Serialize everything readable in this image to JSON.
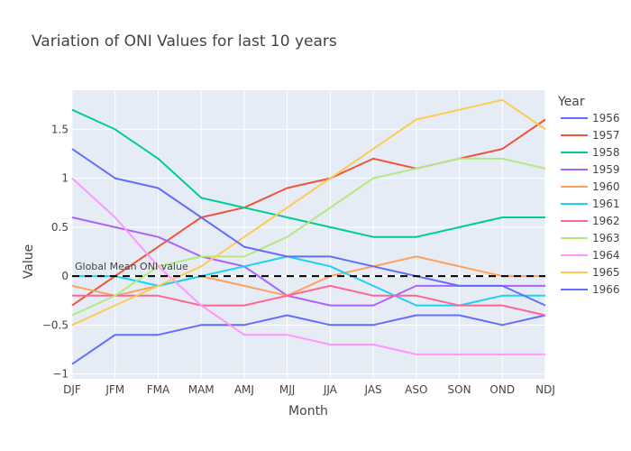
{
  "chart_data": {
    "type": "line",
    "title": "Variation of ONI Values for last 10 years",
    "xlabel": "Month",
    "ylabel": "Value",
    "categories": [
      "DJF",
      "JFM",
      "FMA",
      "MAM",
      "AMJ",
      "MJJ",
      "JJA",
      "JAS",
      "ASO",
      "SON",
      "OND",
      "NDJ"
    ],
    "yticks": [
      "−1",
      "−0.5",
      "0",
      "0.5",
      "1",
      "1.5"
    ],
    "ytick_values": [
      -1,
      -0.5,
      0,
      0.5,
      1,
      1.5
    ],
    "ylim": [
      -1.05,
      1.9
    ],
    "legend_title": "Year",
    "legend_position": "right",
    "grid": true,
    "series": [
      {
        "name": "1956",
        "color": "#636efa",
        "values": [
          -0.9,
          -0.6,
          -0.6,
          -0.5,
          -0.5,
          -0.4,
          -0.5,
          -0.5,
          -0.4,
          -0.4,
          -0.5,
          -0.4
        ]
      },
      {
        "name": "1957",
        "color": "#ef553b",
        "values": [
          -0.3,
          0.0,
          0.3,
          0.6,
          0.7,
          0.9,
          1.0,
          1.2,
          1.1,
          1.2,
          1.3,
          1.6
        ]
      },
      {
        "name": "1958",
        "color": "#00cc96",
        "values": [
          1.7,
          1.5,
          1.2,
          0.8,
          0.7,
          0.6,
          0.5,
          0.4,
          0.4,
          0.5,
          0.6,
          0.6
        ]
      },
      {
        "name": "1959",
        "color": "#ab63fa",
        "values": [
          0.6,
          0.5,
          0.4,
          0.2,
          0.1,
          -0.2,
          -0.3,
          -0.3,
          -0.1,
          -0.1,
          -0.1,
          -0.1
        ]
      },
      {
        "name": "1960",
        "color": "#ffa15a",
        "values": [
          -0.1,
          -0.2,
          -0.1,
          0.0,
          -0.1,
          -0.2,
          0.0,
          0.1,
          0.2,
          0.1,
          0.0,
          0.0
        ]
      },
      {
        "name": "1961",
        "color": "#19d3f3",
        "values": [
          0.0,
          0.0,
          -0.1,
          0.0,
          0.1,
          0.2,
          0.1,
          -0.1,
          -0.3,
          -0.3,
          -0.2,
          -0.2
        ]
      },
      {
        "name": "1962",
        "color": "#ff6692",
        "values": [
          -0.2,
          -0.2,
          -0.2,
          -0.3,
          -0.3,
          -0.2,
          -0.1,
          -0.2,
          -0.2,
          -0.3,
          -0.3,
          -0.4
        ]
      },
      {
        "name": "1963",
        "color": "#b6e880",
        "values": [
          -0.4,
          -0.2,
          0.1,
          0.2,
          0.2,
          0.4,
          0.7,
          1.0,
          1.1,
          1.2,
          1.2,
          1.1
        ]
      },
      {
        "name": "1964",
        "color": "#ff97ff",
        "values": [
          1.0,
          0.6,
          0.1,
          -0.3,
          -0.6,
          -0.6,
          -0.7,
          -0.7,
          -0.8,
          -0.8,
          -0.8,
          -0.8
        ]
      },
      {
        "name": "1965",
        "color": "#fecb52",
        "values": [
          -0.5,
          -0.3,
          -0.1,
          0.1,
          0.4,
          0.7,
          1.0,
          1.3,
          1.6,
          1.7,
          1.8,
          1.5
        ]
      },
      {
        "name": "1966",
        "color": "#636efa",
        "values": [
          1.3,
          1.0,
          0.9,
          0.6,
          0.3,
          0.2,
          0.2,
          0.1,
          0.0,
          -0.1,
          -0.1,
          -0.3
        ]
      }
    ],
    "annotations": [
      {
        "text": "Global Mean ONI value",
        "y": 0,
        "line_style": "dashed",
        "line_color": "#000000"
      }
    ]
  }
}
